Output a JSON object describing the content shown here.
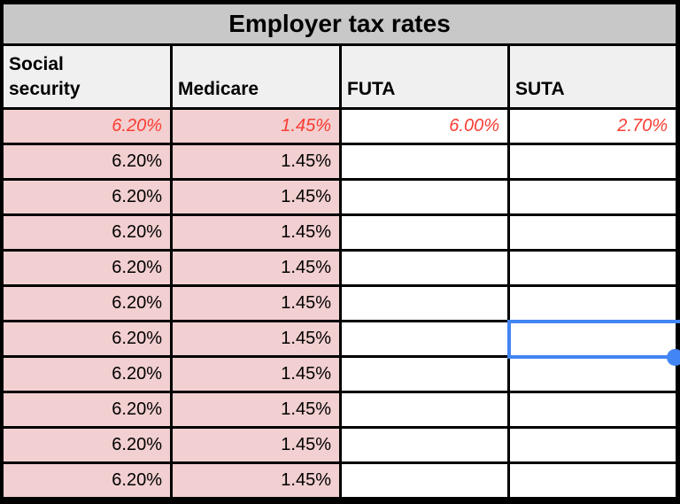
{
  "title": "Employer tax rates",
  "columns": [
    {
      "label": "Social\nsecurity"
    },
    {
      "label": "Medicare"
    },
    {
      "label": "FUTA"
    },
    {
      "label": "SUTA"
    }
  ],
  "rows": [
    {
      "values": [
        "6.20%",
        "1.45%",
        "6.00%",
        "2.70%"
      ],
      "emphasis": true
    },
    {
      "values": [
        "6.20%",
        "1.45%",
        "",
        ""
      ],
      "emphasis": false
    },
    {
      "values": [
        "6.20%",
        "1.45%",
        "",
        ""
      ],
      "emphasis": false
    },
    {
      "values": [
        "6.20%",
        "1.45%",
        "",
        ""
      ],
      "emphasis": false
    },
    {
      "values": [
        "6.20%",
        "1.45%",
        "",
        ""
      ],
      "emphasis": false
    },
    {
      "values": [
        "6.20%",
        "1.45%",
        "",
        ""
      ],
      "emphasis": false
    },
    {
      "values": [
        "6.20%",
        "1.45%",
        "",
        ""
      ],
      "emphasis": false
    },
    {
      "values": [
        "6.20%",
        "1.45%",
        "",
        ""
      ],
      "emphasis": false
    },
    {
      "values": [
        "6.20%",
        "1.45%",
        "",
        ""
      ],
      "emphasis": false
    },
    {
      "values": [
        "6.20%",
        "1.45%",
        "",
        ""
      ],
      "emphasis": false
    },
    {
      "values": [
        "6.20%",
        "1.45%",
        "",
        ""
      ],
      "emphasis": false
    }
  ],
  "selection": {
    "row": 7,
    "column": "SUTA",
    "handle": "fill-handle"
  },
  "colors": {
    "title_bg": "#c8c8c8",
    "header_bg": "#f0f0f0",
    "rate_bg": "#f2cfd0",
    "grid": "#000000",
    "emphasis_text": "#fa3c32",
    "selection": "#4285f4"
  }
}
